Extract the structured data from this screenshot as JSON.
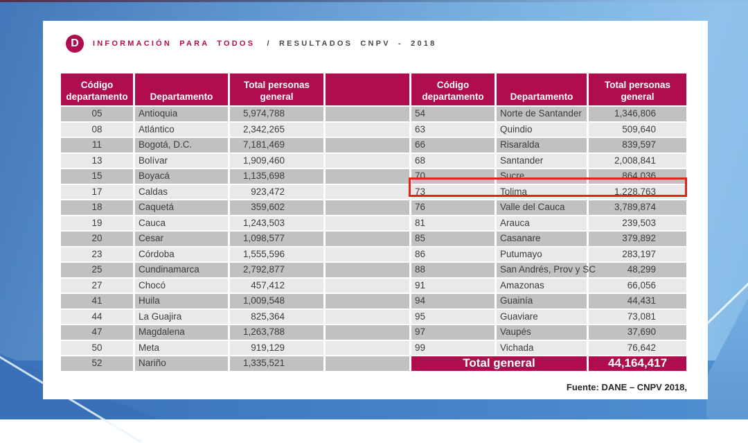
{
  "header": {
    "logo_letter": "D",
    "title_primary": "INFORMACIÓN PARA TODOS",
    "title_secondary": "/ RESULTADOS CNPV - 2018"
  },
  "table": {
    "columns": [
      "Código departamento",
      "Departamento",
      "Total personas general"
    ],
    "left_rows": [
      {
        "code": "05",
        "dept": "Antioquia",
        "total": "5,974,788"
      },
      {
        "code": "08",
        "dept": "Atlántico",
        "total": "2,342,265"
      },
      {
        "code": "11",
        "dept": "Bogotá, D.C.",
        "total": "7,181,469"
      },
      {
        "code": "13",
        "dept": "Bolívar",
        "total": "1,909,460"
      },
      {
        "code": "15",
        "dept": "Boyacá",
        "total": "1,135,698"
      },
      {
        "code": "17",
        "dept": "Caldas",
        "total": "923,472"
      },
      {
        "code": "18",
        "dept": "Caquetá",
        "total": "359,602"
      },
      {
        "code": "19",
        "dept": "Cauca",
        "total": "1,243,503"
      },
      {
        "code": "20",
        "dept": "Cesar",
        "total": "1,098,577"
      },
      {
        "code": "23",
        "dept": "Córdoba",
        "total": "1,555,596"
      },
      {
        "code": "25",
        "dept": "Cundinamarca",
        "total": "2,792,877"
      },
      {
        "code": "27",
        "dept": "Chocó",
        "total": "457,412"
      },
      {
        "code": "41",
        "dept": "Huila",
        "total": "1,009,548"
      },
      {
        "code": "44",
        "dept": "La Guajira",
        "total": "825,364"
      },
      {
        "code": "47",
        "dept": "Magdalena",
        "total": "1,263,788"
      },
      {
        "code": "50",
        "dept": "Meta",
        "total": "919,129"
      },
      {
        "code": "52",
        "dept": "Nariño",
        "total": "1,335,521"
      }
    ],
    "right_rows": [
      {
        "code": "54",
        "dept": "Norte de Santander",
        "total": "1,346,806"
      },
      {
        "code": "63",
        "dept": "Quindio",
        "total": "509,640"
      },
      {
        "code": "66",
        "dept": "Risaralda",
        "total": "839,597"
      },
      {
        "code": "68",
        "dept": "Santander",
        "total": "2,008,841"
      },
      {
        "code": "70",
        "dept": "Sucre",
        "total": "864,036"
      },
      {
        "code": "73",
        "dept": "Tolima",
        "total": "1,228,763"
      },
      {
        "code": "76",
        "dept": "Valle del Cauca",
        "total": "3,789,874"
      },
      {
        "code": "81",
        "dept": "Arauca",
        "total": "239,503"
      },
      {
        "code": "85",
        "dept": "Casanare",
        "total": "379,892"
      },
      {
        "code": "86",
        "dept": "Putumayo",
        "total": "283,197"
      },
      {
        "code": "88",
        "dept": "San Andrés, Prov y SC",
        "total": "48,299"
      },
      {
        "code": "91",
        "dept": "Amazonas",
        "total": "66,056"
      },
      {
        "code": "94",
        "dept": "Guainía",
        "total": "44,431"
      },
      {
        "code": "95",
        "dept": "Guaviare",
        "total": "73,081"
      },
      {
        "code": "97",
        "dept": "Vaupés",
        "total": "37,690"
      },
      {
        "code": "99",
        "dept": "Vichada",
        "total": "76,642"
      }
    ],
    "total_label": "Total general",
    "total_value": "44,164,417",
    "highlight": {
      "code": "73",
      "dept": "Tolima",
      "total": "1,228,763"
    }
  },
  "footer": {
    "source": "Fuente: DANE – CNPV 2018,"
  },
  "colors": {
    "brand_magenta": "#B00D4F",
    "highlight_red": "#E2231A",
    "row_dark": "#C1C1C1",
    "row_light": "#E9E9E9",
    "title_gray": "#47474F"
  }
}
